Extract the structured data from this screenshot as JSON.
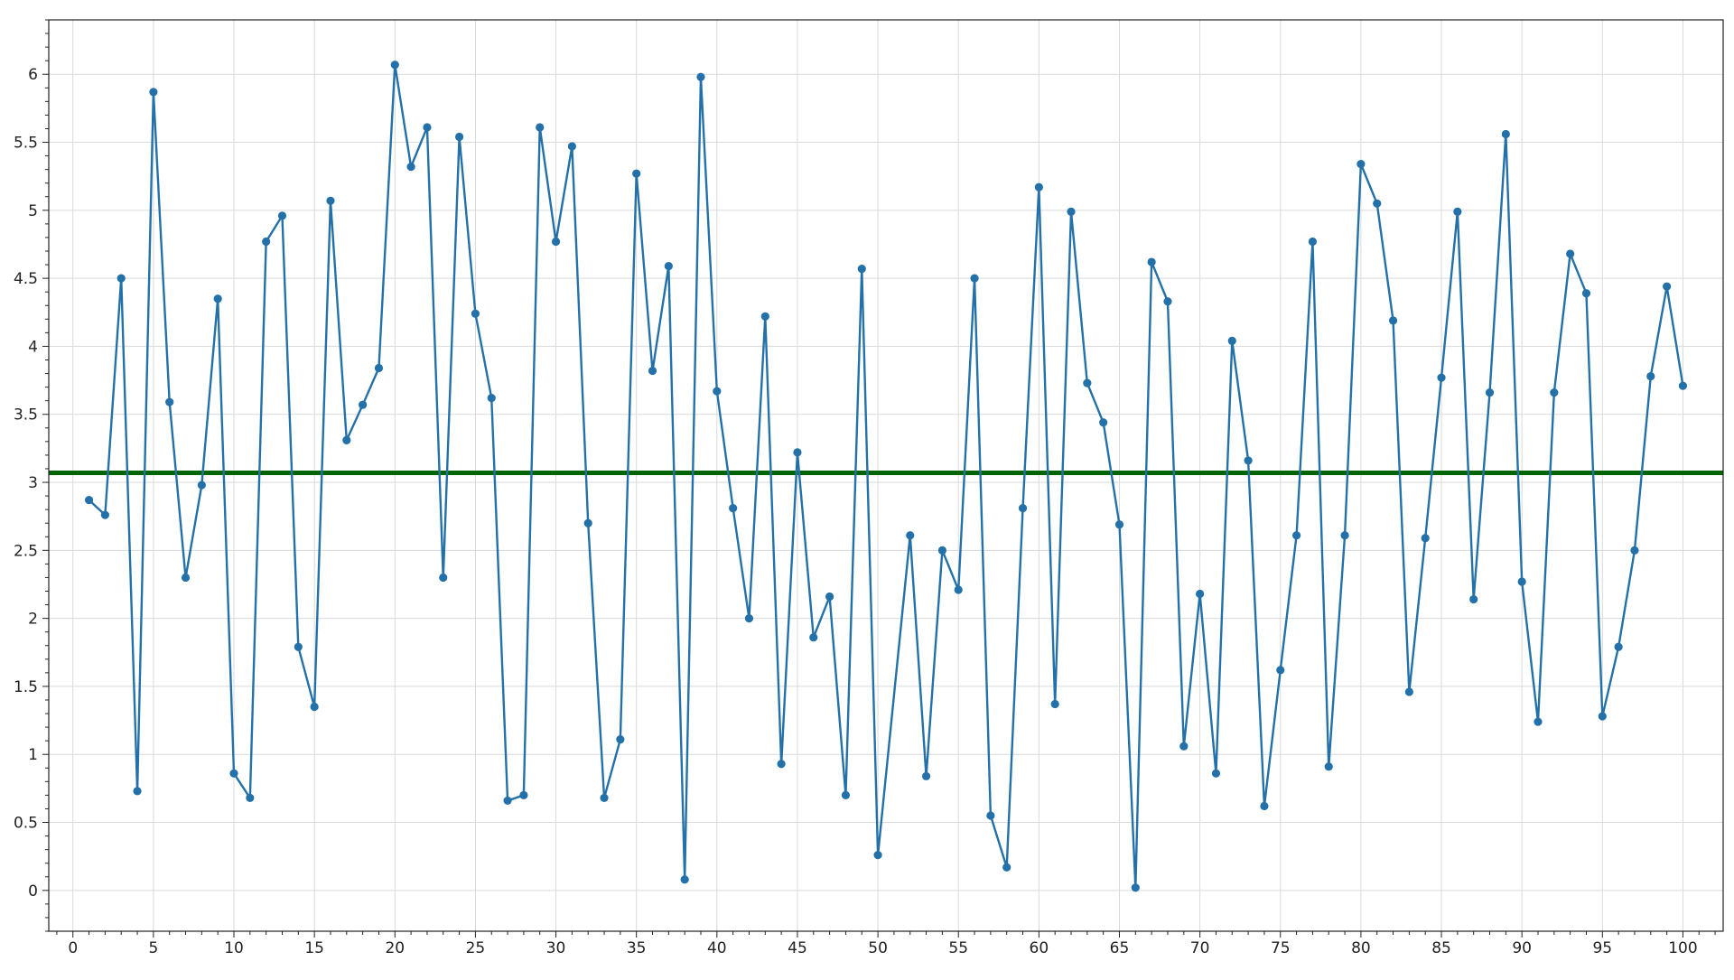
{
  "chart_data": {
    "type": "line",
    "title": "",
    "xlabel": "",
    "ylabel": "",
    "xlim": [
      -1.5,
      102.5
    ],
    "ylim": [
      -0.3,
      6.4
    ],
    "x_ticks": [
      0,
      5,
      10,
      15,
      20,
      25,
      30,
      35,
      40,
      45,
      50,
      55,
      60,
      65,
      70,
      75,
      80,
      85,
      90,
      95,
      100
    ],
    "x_tick_labels": [
      "0",
      "5",
      "10",
      "15",
      "20",
      "25",
      "30",
      "35",
      "40",
      "45",
      "50",
      "55",
      "60",
      "65",
      "70",
      "75",
      "80",
      "85",
      "90",
      "95",
      "100"
    ],
    "y_ticks": [
      0,
      0.5,
      1,
      1.5,
      2,
      2.5,
      3,
      3.5,
      4,
      4.5,
      5,
      5.5,
      6
    ],
    "y_tick_labels": [
      "0",
      "0.5",
      "1",
      "1.5",
      "2",
      "2.5",
      "3",
      "3.5",
      "4",
      "4.5",
      "5",
      "5.5",
      "6"
    ],
    "grid": true,
    "legend": "none",
    "series": [
      {
        "color": "#2471a9",
        "marker": "circle",
        "x": [
          1,
          2,
          3,
          4,
          5,
          6,
          7,
          8,
          9,
          10,
          11,
          12,
          13,
          14,
          15,
          16,
          17,
          18,
          19,
          20,
          21,
          22,
          23,
          24,
          25,
          26,
          27,
          28,
          29,
          30,
          31,
          32,
          33,
          34,
          35,
          36,
          37,
          38,
          39,
          40,
          41,
          42,
          43,
          44,
          45,
          46,
          47,
          48,
          49,
          50,
          52,
          53,
          54,
          55,
          56,
          57,
          58,
          59,
          60,
          61,
          62,
          63,
          64,
          65,
          66,
          67,
          68,
          69,
          70,
          71,
          72,
          73,
          74,
          75,
          76,
          77,
          78,
          79,
          80,
          81,
          82,
          83,
          84,
          85,
          86,
          87,
          88,
          89,
          90,
          91,
          92,
          93,
          94,
          95,
          96,
          97,
          98,
          99,
          100
        ],
        "values": [
          2.87,
          2.76,
          4.5,
          0.73,
          5.87,
          3.59,
          2.3,
          2.98,
          4.35,
          0.86,
          0.68,
          4.77,
          4.96,
          1.79,
          1.35,
          5.07,
          3.31,
          3.57,
          3.84,
          6.07,
          5.32,
          5.61,
          2.3,
          5.54,
          4.24,
          3.62,
          0.66,
          0.7,
          5.61,
          4.77,
          5.47,
          2.7,
          0.68,
          1.11,
          5.27,
          3.82,
          4.59,
          0.08,
          5.98,
          3.67,
          2.81,
          2.0,
          4.22,
          0.93,
          3.22,
          1.86,
          2.16,
          0.7,
          4.57,
          0.26,
          2.61,
          0.84,
          2.5,
          2.21,
          4.5,
          0.55,
          0.17,
          2.81,
          5.17,
          1.37,
          4.99,
          3.73,
          3.44,
          2.69,
          0.02,
          4.62,
          4.33,
          1.06,
          2.18,
          0.86,
          4.04,
          3.16,
          0.62,
          1.62,
          2.61,
          4.77,
          0.91,
          2.61,
          5.34,
          5.05,
          4.19,
          1.46,
          2.59,
          3.77,
          4.99,
          2.14,
          3.66,
          5.56,
          2.27,
          1.24,
          3.66,
          4.68,
          4.39,
          1.28,
          1.79,
          2.5,
          3.78,
          4.44,
          3.71
        ]
      }
    ],
    "reference_line": {
      "orientation": "horizontal",
      "y": 3.07,
      "color": "#006400"
    }
  }
}
